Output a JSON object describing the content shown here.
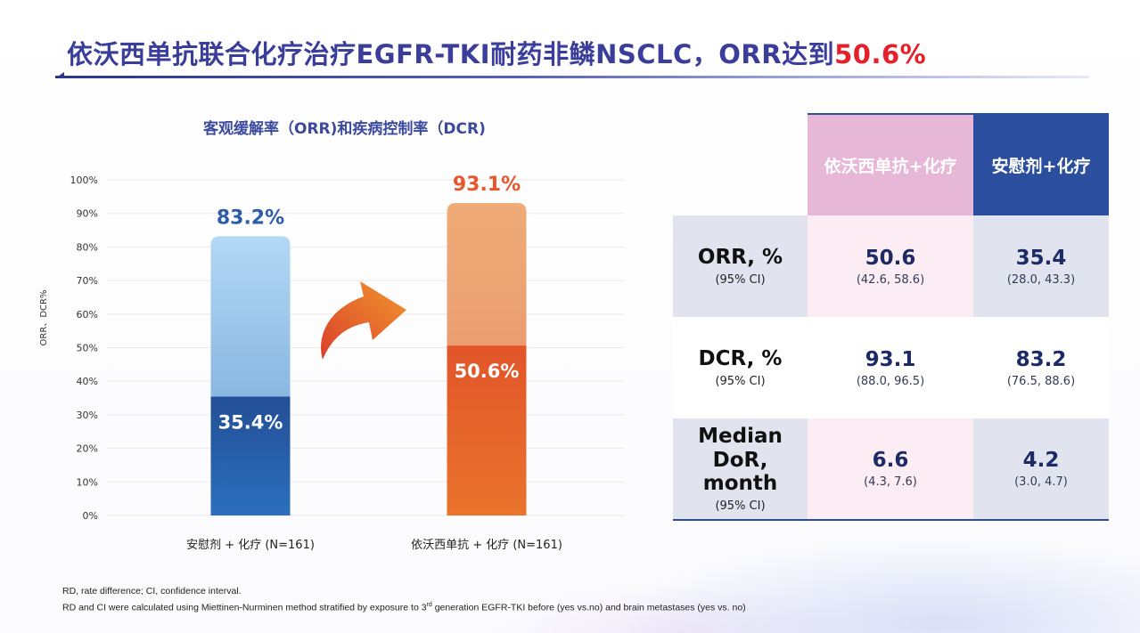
{
  "title": {
    "main": "依沃西单抗联合化疗治疗EGFR-TKI耐药非鳞NSCLC，ORR达到",
    "highlight": "50.6%"
  },
  "chart_title": "客观缓解率（ORR)和疾病控制率（DCR)",
  "chart_data": {
    "type": "bar",
    "ylabel": "ORR、DCR%",
    "ylim": [
      0,
      100
    ],
    "yticks": [
      "0%",
      "10%",
      "20%",
      "30%",
      "40%",
      "50%",
      "60%",
      "70%",
      "80%",
      "90%",
      "100%"
    ],
    "categories": [
      "安慰剂 + 化疗 (N=161)",
      "依沃西单抗 + 化疗 (N=161)"
    ],
    "series": [
      {
        "name": "ORR",
        "values": [
          35.4,
          50.6
        ],
        "labels": [
          "35.4%",
          "50.6%"
        ]
      },
      {
        "name": "DCR",
        "values": [
          83.2,
          93.1
        ],
        "labels": [
          "83.2%",
          "93.1%"
        ]
      }
    ],
    "colors": {
      "placebo_orr": "#2a63ad",
      "placebo_dcr": "#a9d0f0",
      "ivonescimab_orr": "#e5612a",
      "ivonescimab_dcr": "#eda26c",
      "placebo_label": "#2d5da8",
      "ivonescimab_label": "#e8572b"
    }
  },
  "table": {
    "header_a": "依沃西单抗+化疗",
    "header_b": "安慰剂+化疗",
    "rows": [
      {
        "label": "ORR, %",
        "sublabel": "(95% CI)",
        "a": "50.6",
        "a_ci": "(42.6, 58.6)",
        "b": "35.4",
        "b_ci": "(28.0, 43.3)"
      },
      {
        "label": "DCR, %",
        "sublabel": "(95% CI)",
        "a": "93.1",
        "a_ci": "(88.0, 96.5)",
        "b": "83.2",
        "b_ci": "(76.5, 88.6)"
      },
      {
        "label": "Median DoR, month",
        "sublabel": "(95% CI)",
        "a": "6.6",
        "a_ci": "(4.3, 7.6)",
        "b": "4.2",
        "b_ci": "(3.0, 4.7)"
      }
    ]
  },
  "footnote": {
    "line1": "RD, rate difference; CI, confidence interval.",
    "line2_a": "RD and CI were calculated using Miettinen-Nurminen method stratified by exposure to 3",
    "line2_sup": "rd",
    "line2_b": " generation EGFR-TKI before (yes vs.no) and brain metastases (yes vs. no)"
  }
}
